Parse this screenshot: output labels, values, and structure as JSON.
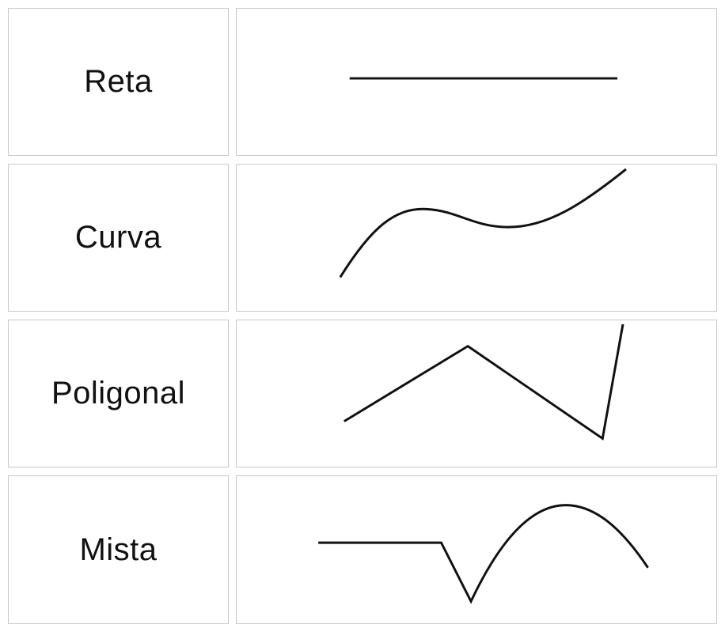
{
  "rows": [
    {
      "label": "Reta",
      "shape": "straight-line"
    },
    {
      "label": "Curva",
      "shape": "curved-line"
    },
    {
      "label": "Poligonal",
      "shape": "polygonal-line"
    },
    {
      "label": "Mista",
      "shape": "mixed-line"
    }
  ],
  "colors": {
    "border": "#c8c8c8",
    "stroke": "#111111",
    "text": "#111111",
    "background": "#ffffff"
  }
}
